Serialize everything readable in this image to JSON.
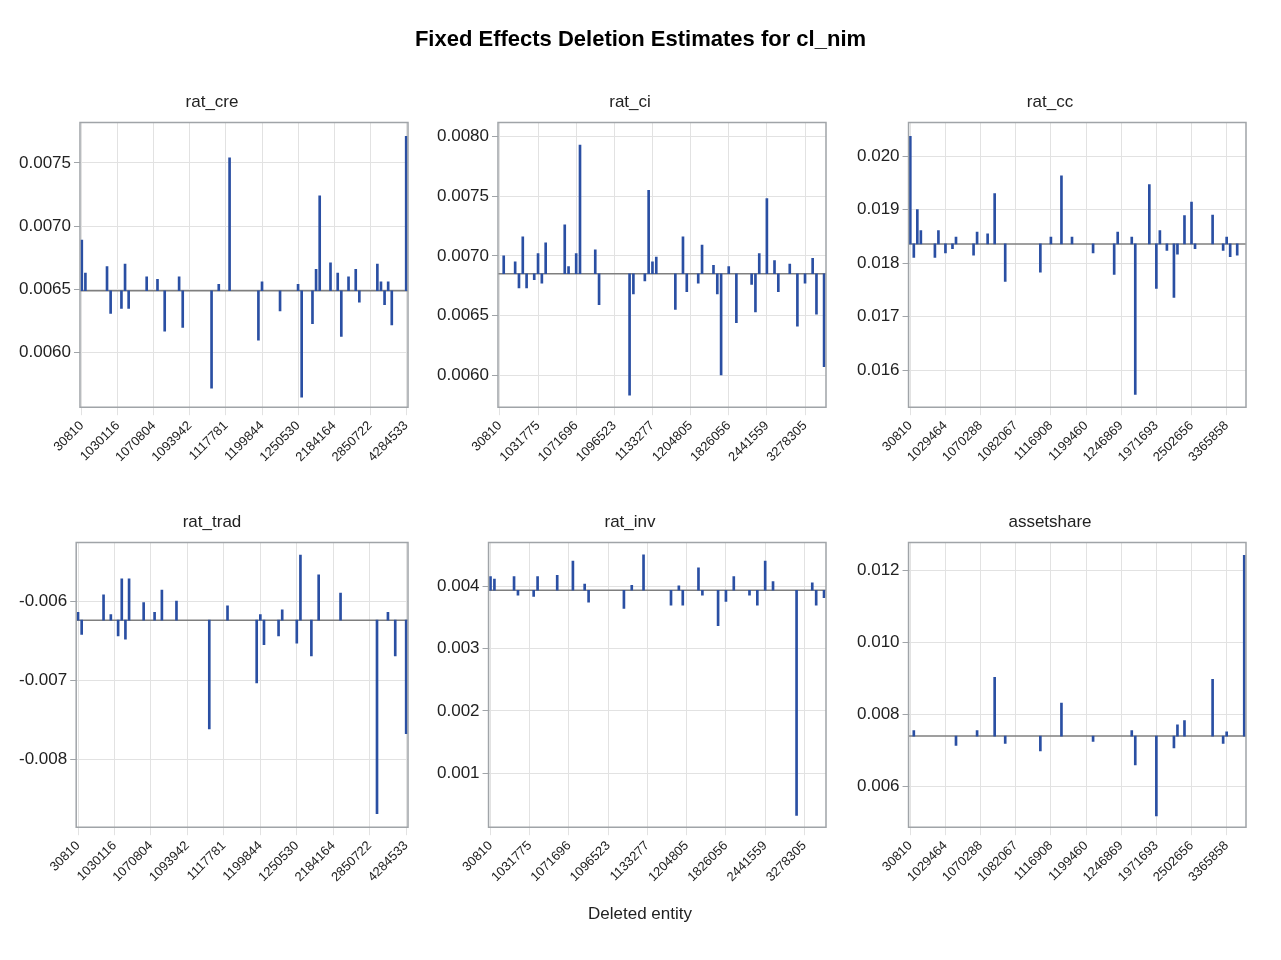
{
  "chart_data": [
    {
      "type": "bar",
      "title": "rat_cre",
      "annotations": [
        "Fixed Effects Deletion Estimates for cl_nim"
      ],
      "grid": true,
      "categories": [
        "30810",
        null,
        null,
        null,
        null,
        null,
        null,
        null,
        null,
        null,
        "1030116",
        null,
        null,
        null,
        null,
        null,
        null,
        null,
        null,
        null,
        "1070804",
        null,
        null,
        null,
        null,
        null,
        null,
        null,
        null,
        null,
        "1093942",
        null,
        null,
        null,
        null,
        null,
        null,
        null,
        null,
        null,
        "1117781",
        null,
        null,
        null,
        null,
        null,
        null,
        null,
        null,
        null,
        "1199844",
        null,
        null,
        null,
        null,
        null,
        null,
        null,
        null,
        null,
        "1250530",
        null,
        null,
        null,
        null,
        null,
        null,
        null,
        null,
        null,
        "2184164",
        null,
        null,
        null,
        null,
        null,
        null,
        null,
        null,
        null,
        "2850722",
        null,
        null,
        null,
        null,
        null,
        null,
        null,
        null,
        null,
        "4284533"
      ],
      "series": [
        {
          "color": "#2a4fa3",
          "values": [
            0.0004,
            0.00014,
            null,
            null,
            null,
            null,
            null,
            0.00019,
            -0.00018,
            null,
            null,
            -0.00014,
            0.00021,
            -0.00014,
            null,
            null,
            null,
            null,
            0.00011,
            null,
            null,
            9e-05,
            null,
            -0.00032,
            null,
            null,
            null,
            0.00011,
            -0.00029,
            null,
            null,
            null,
            null,
            null,
            null,
            null,
            -0.00077,
            null,
            5e-05,
            null,
            null,
            0.00105,
            null,
            null,
            null,
            null,
            null,
            null,
            null,
            -0.00039,
            7e-05,
            null,
            null,
            null,
            null,
            -0.00016,
            null,
            null,
            null,
            null,
            5e-05,
            -0.00084,
            null,
            null,
            -0.00026,
            0.00017,
            0.00075,
            null,
            null,
            0.00022,
            null,
            0.00014,
            -0.00036,
            null,
            0.00011,
            null,
            0.00017,
            -9e-05,
            null,
            null,
            null,
            null,
            0.00021,
            7e-05,
            -0.00011,
            7e-05,
            -0.00027,
            null,
            null,
            null,
            0.00122
          ],
          "base": [
            0.00649,
            0.00649,
            null,
            null,
            null,
            null,
            null,
            0.00649,
            0.00649,
            null,
            null,
            0.00649,
            0.00649,
            0.00649,
            null,
            null,
            null,
            null,
            0.00649,
            null,
            null,
            0.00649,
            null,
            0.00649,
            null,
            null,
            null,
            0.00649,
            0.00649,
            null,
            null,
            null,
            null,
            null,
            null,
            null,
            0.00649,
            null,
            0.00649,
            null,
            null,
            0.00649,
            null,
            null,
            null,
            null,
            null,
            null,
            null,
            0.00649,
            0.00649,
            null,
            null,
            null,
            null,
            0.00649,
            null,
            null,
            null,
            null,
            0.00649,
            0.00649,
            null,
            null,
            0.00649,
            0.00649,
            0.00649,
            null,
            null,
            0.00649,
            null,
            0.00649,
            0.00649,
            null,
            0.00649,
            null,
            0.00649,
            0.00649,
            null,
            null,
            null,
            null,
            0.00649,
            0.00649,
            0.00649,
            0.00649,
            0.00649,
            null,
            null,
            null,
            0.00649
          ]
        }
      ],
      "ylim": [
        0.00557,
        0.00782
      ],
      "yticks": [
        {
          "value": 0.006,
          "label": "0.0060"
        },
        {
          "value": 0.0065,
          "label": "0.0065"
        },
        {
          "value": 0.007,
          "label": "0.0070"
        },
        {
          "value": 0.0075,
          "label": "0.0075"
        }
      ],
      "ref_lines": [
        {
          "axis": "y",
          "value": 0.00649,
          "color": "#7f7f7f"
        }
      ]
    },
    {
      "type": "bar",
      "title": "rat_ci",
      "grid": true,
      "categories": [
        "30810",
        null,
        null,
        null,
        null,
        null,
        null,
        null,
        null,
        null,
        "1031775",
        null,
        null,
        null,
        null,
        null,
        null,
        null,
        null,
        null,
        "1071696",
        null,
        null,
        null,
        null,
        null,
        null,
        null,
        null,
        null,
        "1096523",
        null,
        null,
        null,
        null,
        null,
        null,
        null,
        null,
        null,
        "1133277",
        null,
        null,
        null,
        null,
        null,
        null,
        null,
        null,
        null,
        "1204805",
        null,
        null,
        null,
        null,
        null,
        null,
        null,
        null,
        null,
        "1826056",
        null,
        null,
        null,
        null,
        null,
        null,
        null,
        null,
        null,
        "2441559",
        null,
        null,
        null,
        null,
        null,
        null,
        null,
        null,
        null,
        "3278305",
        null,
        null,
        null,
        null,
        null
      ],
      "series": [
        {
          "color": "#2a4fa3",
          "values": [
            null,
            0.00015,
            null,
            null,
            0.0001,
            -0.00012,
            0.00031,
            -0.00012,
            null,
            -5e-05,
            0.00017,
            -8e-05,
            0.00026,
            null,
            null,
            null,
            null,
            0.00041,
            6e-05,
            null,
            0.00017,
            0.00108,
            null,
            null,
            null,
            0.0002,
            -0.00026,
            null,
            null,
            null,
            null,
            null,
            null,
            null,
            -0.00102,
            -0.00017,
            null,
            null,
            -6e-05,
            0.0007,
            0.0001,
            0.00014,
            null,
            null,
            null,
            null,
            -0.0003,
            null,
            0.00031,
            -0.00015,
            null,
            null,
            -8e-05,
            0.00024,
            null,
            null,
            7e-05,
            -0.00017,
            -0.00085,
            null,
            6e-05,
            null,
            -0.00041,
            null,
            null,
            null,
            -9e-05,
            -0.00032,
            0.00017,
            null,
            0.00063,
            null,
            0.00011,
            -0.00015,
            null,
            null,
            8e-05,
            null,
            -0.00044,
            null,
            -8e-05,
            null,
            0.00013,
            -0.00034,
            null,
            -0.00078
          ],
          "base": [
            null,
            0.00685,
            null,
            null,
            0.00685,
            0.00685,
            0.00685,
            0.00685,
            null,
            0.00685,
            0.00685,
            0.00685,
            0.00685,
            null,
            null,
            null,
            null,
            0.00685,
            0.00685,
            null,
            0.00685,
            0.00685,
            null,
            null,
            null,
            0.00685,
            0.00685,
            null,
            null,
            null,
            null,
            null,
            null,
            null,
            0.00685,
            0.00685,
            null,
            null,
            0.00685,
            0.00685,
            0.00685,
            0.00685,
            null,
            null,
            null,
            null,
            0.00685,
            null,
            0.00685,
            0.00685,
            null,
            null,
            0.00685,
            0.00685,
            null,
            null,
            0.00685,
            0.00685,
            0.00685,
            null,
            0.00685,
            null,
            0.00685,
            null,
            null,
            null,
            0.00685,
            0.00685,
            0.00685,
            null,
            0.00685,
            null,
            0.00685,
            0.00685,
            null,
            null,
            0.00685,
            null,
            0.00685,
            null,
            0.00685,
            null,
            0.00685,
            0.00685,
            null,
            0.00685
          ]
        }
      ],
      "ylim": [
        0.00573,
        0.00812
      ],
      "yticks": [
        {
          "value": 0.006,
          "label": "0.0060"
        },
        {
          "value": 0.0065,
          "label": "0.0065"
        },
        {
          "value": 0.007,
          "label": "0.0070"
        },
        {
          "value": 0.0075,
          "label": "0.0075"
        },
        {
          "value": 0.008,
          "label": "0.0080"
        }
      ],
      "ref_lines": [
        {
          "axis": "y",
          "value": 0.00685,
          "color": "#7f7f7f"
        }
      ]
    },
    {
      "type": "bar",
      "title": "rat_cc",
      "grid": true,
      "categories": [
        "30810",
        null,
        null,
        null,
        null,
        null,
        null,
        null,
        null,
        null,
        "1029464",
        null,
        null,
        null,
        null,
        null,
        null,
        null,
        null,
        null,
        "1070288",
        null,
        null,
        null,
        null,
        null,
        null,
        null,
        null,
        null,
        "1082067",
        null,
        null,
        null,
        null,
        null,
        null,
        null,
        null,
        null,
        "1116908",
        null,
        null,
        null,
        null,
        null,
        null,
        null,
        null,
        null,
        "1199460",
        null,
        null,
        null,
        null,
        null,
        null,
        null,
        null,
        null,
        "1246869",
        null,
        null,
        null,
        null,
        null,
        null,
        null,
        null,
        null,
        "1971693",
        null,
        null,
        null,
        null,
        null,
        null,
        null,
        null,
        null,
        "2502656",
        null,
        null,
        null,
        null,
        null,
        null,
        null,
        null,
        null,
        "3365858",
        null,
        null,
        null,
        null,
        null
      ],
      "series": [
        {
          "color": "#2a4fa3",
          "values": [
            0.00201,
            -0.00025,
            0.00064,
            0.00025,
            null,
            null,
            null,
            -0.00025,
            0.00025,
            null,
            -0.00017,
            null,
            -9e-05,
            0.00013,
            null,
            null,
            null,
            null,
            -0.00021,
            0.00022,
            null,
            null,
            0.00019,
            null,
            0.00094,
            null,
            null,
            -0.0007,
            null,
            null,
            null,
            null,
            null,
            null,
            null,
            null,
            null,
            -0.00053,
            null,
            null,
            0.00013,
            null,
            null,
            0.00127,
            null,
            null,
            0.00013,
            null,
            null,
            null,
            null,
            null,
            -0.00017,
            null,
            null,
            null,
            null,
            null,
            -0.00057,
            0.00022,
            null,
            null,
            null,
            0.00013,
            -0.00281,
            null,
            null,
            null,
            0.00111,
            null,
            -0.00083,
            0.00025,
            null,
            -0.00012,
            null,
            -0.001,
            -0.00019,
            null,
            0.00053,
            null,
            0.00078,
            -9e-05,
            null,
            null,
            null,
            null,
            0.00054,
            null,
            null,
            -0.00012,
            0.00013,
            -0.00024,
            null,
            -0.00021,
            null,
            null
          ],
          "base": [
            0.01836,
            0.01836,
            0.01836,
            0.01836,
            null,
            null,
            null,
            0.01836,
            0.01836,
            null,
            0.01836,
            null,
            0.01836,
            0.01836,
            null,
            null,
            null,
            null,
            0.01836,
            0.01836,
            null,
            null,
            0.01836,
            null,
            0.01836,
            null,
            null,
            0.01836,
            null,
            null,
            null,
            null,
            null,
            null,
            null,
            null,
            null,
            0.01836,
            null,
            null,
            0.01836,
            null,
            null,
            0.01836,
            null,
            null,
            0.01836,
            null,
            null,
            null,
            null,
            null,
            0.01836,
            null,
            null,
            null,
            null,
            null,
            0.01836,
            0.01836,
            null,
            null,
            null,
            0.01836,
            0.01836,
            null,
            null,
            null,
            0.01836,
            null,
            0.01836,
            0.01836,
            null,
            0.01836,
            null,
            0.01836,
            0.01836,
            null,
            0.01836,
            null,
            0.01836,
            0.01836,
            null,
            null,
            null,
            null,
            0.01836,
            null,
            null,
            0.01836,
            0.01836,
            0.01836,
            null,
            0.01836,
            null,
            null
          ]
        }
      ],
      "ylim": [
        0.01531,
        0.02063
      ],
      "yticks": [
        0.016,
        0.017,
        0.018,
        0.019,
        {
          "value": 0.02,
          "label": "0.020"
        }
      ],
      "ref_lines": [
        {
          "axis": "y",
          "value": 0.01836,
          "color": "#7f7f7f"
        }
      ]
    },
    {
      "type": "bar",
      "title": "rat_trad",
      "grid": true,
      "categories": [
        "30810",
        null,
        null,
        null,
        null,
        null,
        null,
        null,
        null,
        null,
        "1030116",
        null,
        null,
        null,
        null,
        null,
        null,
        null,
        null,
        null,
        "1070804",
        null,
        null,
        null,
        null,
        null,
        null,
        null,
        null,
        null,
        "1093942",
        null,
        null,
        null,
        null,
        null,
        null,
        null,
        null,
        null,
        "1117781",
        null,
        null,
        null,
        null,
        null,
        null,
        null,
        null,
        null,
        "1199844",
        null,
        null,
        null,
        null,
        null,
        null,
        null,
        null,
        null,
        "1250530",
        null,
        null,
        null,
        null,
        null,
        null,
        null,
        null,
        null,
        "2184164",
        null,
        null,
        null,
        null,
        null,
        null,
        null,
        null,
        null,
        "2850722",
        null,
        null,
        null,
        null,
        null,
        null,
        null,
        null,
        null,
        "4284533"
      ],
      "series": [
        {
          "color": "#2a4fa3",
          "values": [
            0.0001,
            -0.00018,
            null,
            null,
            null,
            null,
            null,
            0.00032,
            null,
            7e-05,
            null,
            -0.0002,
            0.00052,
            -0.00024,
            0.00052,
            null,
            null,
            null,
            0.00022,
            null,
            null,
            0.0001,
            null,
            0.00038,
            null,
            null,
            null,
            0.00024,
            null,
            null,
            null,
            null,
            null,
            null,
            null,
            null,
            -0.00137,
            null,
            null,
            null,
            null,
            0.00018,
            null,
            null,
            null,
            null,
            null,
            null,
            null,
            -0.00079,
            7e-05,
            -0.00031,
            null,
            null,
            null,
            -0.0002,
            0.00013,
            null,
            null,
            null,
            -0.00029,
            0.00082,
            null,
            null,
            -0.00045,
            null,
            0.00057,
            null,
            null,
            null,
            null,
            null,
            0.00034,
            null,
            null,
            null,
            null,
            null,
            null,
            null,
            null,
            null,
            -0.00244,
            null,
            null,
            0.0001,
            null,
            -0.00045,
            null,
            null,
            -0.00143
          ],
          "base": [
            -0.00624,
            -0.00624,
            null,
            null,
            null,
            null,
            null,
            -0.00624,
            null,
            -0.00624,
            null,
            -0.00624,
            -0.00624,
            -0.00624,
            -0.00624,
            null,
            null,
            null,
            -0.00624,
            null,
            null,
            -0.00624,
            null,
            -0.00624,
            null,
            null,
            null,
            -0.00624,
            null,
            null,
            null,
            null,
            null,
            null,
            null,
            null,
            -0.00624,
            null,
            null,
            null,
            null,
            -0.00624,
            null,
            null,
            null,
            null,
            null,
            null,
            null,
            -0.00624,
            -0.00624,
            -0.00624,
            null,
            null,
            null,
            -0.00624,
            -0.00624,
            null,
            null,
            null,
            -0.00624,
            -0.00624,
            null,
            null,
            -0.00624,
            null,
            -0.00624,
            null,
            null,
            null,
            null,
            null,
            -0.00624,
            null,
            null,
            null,
            null,
            null,
            null,
            null,
            null,
            null,
            -0.00624,
            null,
            null,
            -0.00624,
            null,
            -0.00624,
            null,
            null,
            -0.00624
          ]
        }
      ],
      "ylim": [
        -0.00885,
        -0.00526
      ],
      "yticks": [
        -0.008,
        -0.007,
        -0.006
      ],
      "ref_lines": [
        {
          "axis": "y",
          "value": -0.00624,
          "color": "#7f7f7f"
        }
      ]
    },
    {
      "type": "bar",
      "title": "rat_inv",
      "xlabel": "Deleted entity",
      "grid": true,
      "categories": [
        "30810",
        null,
        null,
        null,
        null,
        null,
        null,
        null,
        null,
        null,
        "1031775",
        null,
        null,
        null,
        null,
        null,
        null,
        null,
        null,
        null,
        "1071696",
        null,
        null,
        null,
        null,
        null,
        null,
        null,
        null,
        null,
        "1096523",
        null,
        null,
        null,
        null,
        null,
        null,
        null,
        null,
        null,
        "1133277",
        null,
        null,
        null,
        null,
        null,
        null,
        null,
        null,
        null,
        "1204805",
        null,
        null,
        null,
        null,
        null,
        null,
        null,
        null,
        null,
        "1826056",
        null,
        null,
        null,
        null,
        null,
        null,
        null,
        null,
        null,
        "2441559",
        null,
        null,
        null,
        null,
        null,
        null,
        null,
        null,
        null,
        "3278305",
        null,
        null,
        null,
        null,
        null
      ],
      "series": [
        {
          "color": "#2a4fa3",
          "values": [
            0.00022,
            0.00018,
            null,
            null,
            null,
            null,
            0.00022,
            -8e-05,
            null,
            null,
            null,
            -0.0001,
            0.00022,
            null,
            null,
            null,
            null,
            0.00024,
            null,
            null,
            null,
            0.00047,
            null,
            null,
            0.0001,
            -0.00019,
            null,
            null,
            null,
            null,
            null,
            null,
            null,
            null,
            -0.00029,
            null,
            8e-05,
            null,
            null,
            0.00057,
            null,
            null,
            null,
            null,
            null,
            null,
            -0.00024,
            null,
            7e-05,
            -0.00024,
            null,
            null,
            null,
            0.00036,
            -8e-05,
            null,
            null,
            null,
            -0.00057,
            null,
            -0.00018,
            null,
            0.00022,
            null,
            null,
            null,
            -8e-05,
            null,
            -0.00024,
            null,
            0.00047,
            null,
            0.00014,
            null,
            null,
            null,
            null,
            null,
            -0.00362,
            null,
            null,
            null,
            0.00012,
            -0.00024,
            null,
            -0.00012
          ],
          "base": [
            0.00394,
            0.00394,
            null,
            null,
            null,
            null,
            0.00394,
            0.00394,
            null,
            null,
            null,
            0.00394,
            0.00394,
            null,
            null,
            null,
            null,
            0.00394,
            null,
            null,
            null,
            0.00394,
            null,
            null,
            0.00394,
            0.00394,
            null,
            null,
            null,
            null,
            null,
            null,
            null,
            null,
            0.00394,
            null,
            0.00394,
            null,
            null,
            0.00394,
            null,
            null,
            null,
            null,
            null,
            null,
            0.00394,
            null,
            0.00394,
            0.00394,
            null,
            null,
            null,
            0.00394,
            0.00394,
            null,
            null,
            null,
            0.00394,
            null,
            0.00394,
            null,
            0.00394,
            null,
            null,
            null,
            0.00394,
            null,
            0.00394,
            null,
            0.00394,
            null,
            0.00394,
            null,
            null,
            null,
            null,
            null,
            0.00394,
            null,
            null,
            null,
            0.00394,
            0.00394,
            null,
            0.00394
          ]
        }
      ],
      "ylim": [
        0.00013,
        0.00471
      ],
      "yticks": [
        0.001,
        0.002,
        0.003,
        0.004
      ],
      "ref_lines": [
        {
          "axis": "y",
          "value": 0.00394,
          "color": "#7f7f7f"
        }
      ]
    },
    {
      "type": "bar",
      "title": "assetshare",
      "grid": true,
      "categories": [
        "30810",
        null,
        null,
        null,
        null,
        null,
        null,
        null,
        null,
        null,
        "1029464",
        null,
        null,
        null,
        null,
        null,
        null,
        null,
        null,
        null,
        "1070288",
        null,
        null,
        null,
        null,
        null,
        null,
        null,
        null,
        null,
        "1082067",
        null,
        null,
        null,
        null,
        null,
        null,
        null,
        null,
        null,
        "1116908",
        null,
        null,
        null,
        null,
        null,
        null,
        null,
        null,
        null,
        "1199460",
        null,
        null,
        null,
        null,
        null,
        null,
        null,
        null,
        null,
        "1246869",
        null,
        null,
        null,
        null,
        null,
        null,
        null,
        null,
        null,
        "1971693",
        null,
        null,
        null,
        null,
        null,
        null,
        null,
        null,
        null,
        "2502656",
        null,
        null,
        null,
        null,
        null,
        null,
        null,
        null,
        null,
        "3365858",
        null,
        null,
        null,
        null,
        null
      ],
      "series": [
        {
          "color": "#2a4fa3",
          "values": [
            null,
            0.00015,
            null,
            null,
            null,
            null,
            null,
            null,
            null,
            null,
            null,
            null,
            null,
            -0.00026,
            null,
            null,
            null,
            null,
            null,
            0.00015,
            null,
            null,
            null,
            null,
            0.00163,
            null,
            null,
            -0.0002,
            null,
            null,
            null,
            null,
            null,
            null,
            null,
            null,
            null,
            -0.00041,
            null,
            null,
            null,
            null,
            null,
            0.00092,
            null,
            null,
            null,
            null,
            null,
            null,
            null,
            null,
            -0.00015,
            null,
            null,
            null,
            null,
            null,
            null,
            null,
            null,
            null,
            null,
            0.00015,
            -0.0008,
            null,
            null,
            null,
            null,
            null,
            -0.00222,
            null,
            null,
            null,
            null,
            -0.00033,
            0.00031,
            null,
            0.00043,
            null,
            null,
            null,
            null,
            null,
            null,
            null,
            0.00158,
            null,
            null,
            -0.0002,
            0.00012,
            null,
            null,
            null,
            null,
            0.00502
          ],
          "base": [
            null,
            0.00739,
            null,
            null,
            null,
            null,
            null,
            null,
            null,
            null,
            null,
            null,
            null,
            0.00739,
            null,
            null,
            null,
            null,
            null,
            0.00739,
            null,
            null,
            null,
            null,
            0.00739,
            null,
            null,
            0.00739,
            null,
            null,
            null,
            null,
            null,
            null,
            null,
            null,
            null,
            0.00739,
            null,
            null,
            null,
            null,
            null,
            0.00739,
            null,
            null,
            null,
            null,
            null,
            null,
            null,
            null,
            0.00739,
            null,
            null,
            null,
            null,
            null,
            null,
            null,
            null,
            null,
            null,
            0.00739,
            0.00739,
            null,
            null,
            null,
            null,
            null,
            0.00739,
            null,
            null,
            null,
            null,
            0.00739,
            0.00739,
            null,
            0.00739,
            null,
            null,
            null,
            null,
            null,
            null,
            null,
            0.00739,
            null,
            null,
            0.00739,
            0.00739,
            null,
            null,
            null,
            null,
            0.00739
          ]
        }
      ],
      "ylim": [
        0.00486,
        0.01277
      ],
      "yticks": [
        0.006,
        0.008,
        {
          "value": 0.01,
          "label": "0.010"
        },
        0.012
      ],
      "ref_lines": [
        {
          "axis": "y",
          "value": 0.00739,
          "color": "#7f7f7f"
        }
      ]
    }
  ]
}
